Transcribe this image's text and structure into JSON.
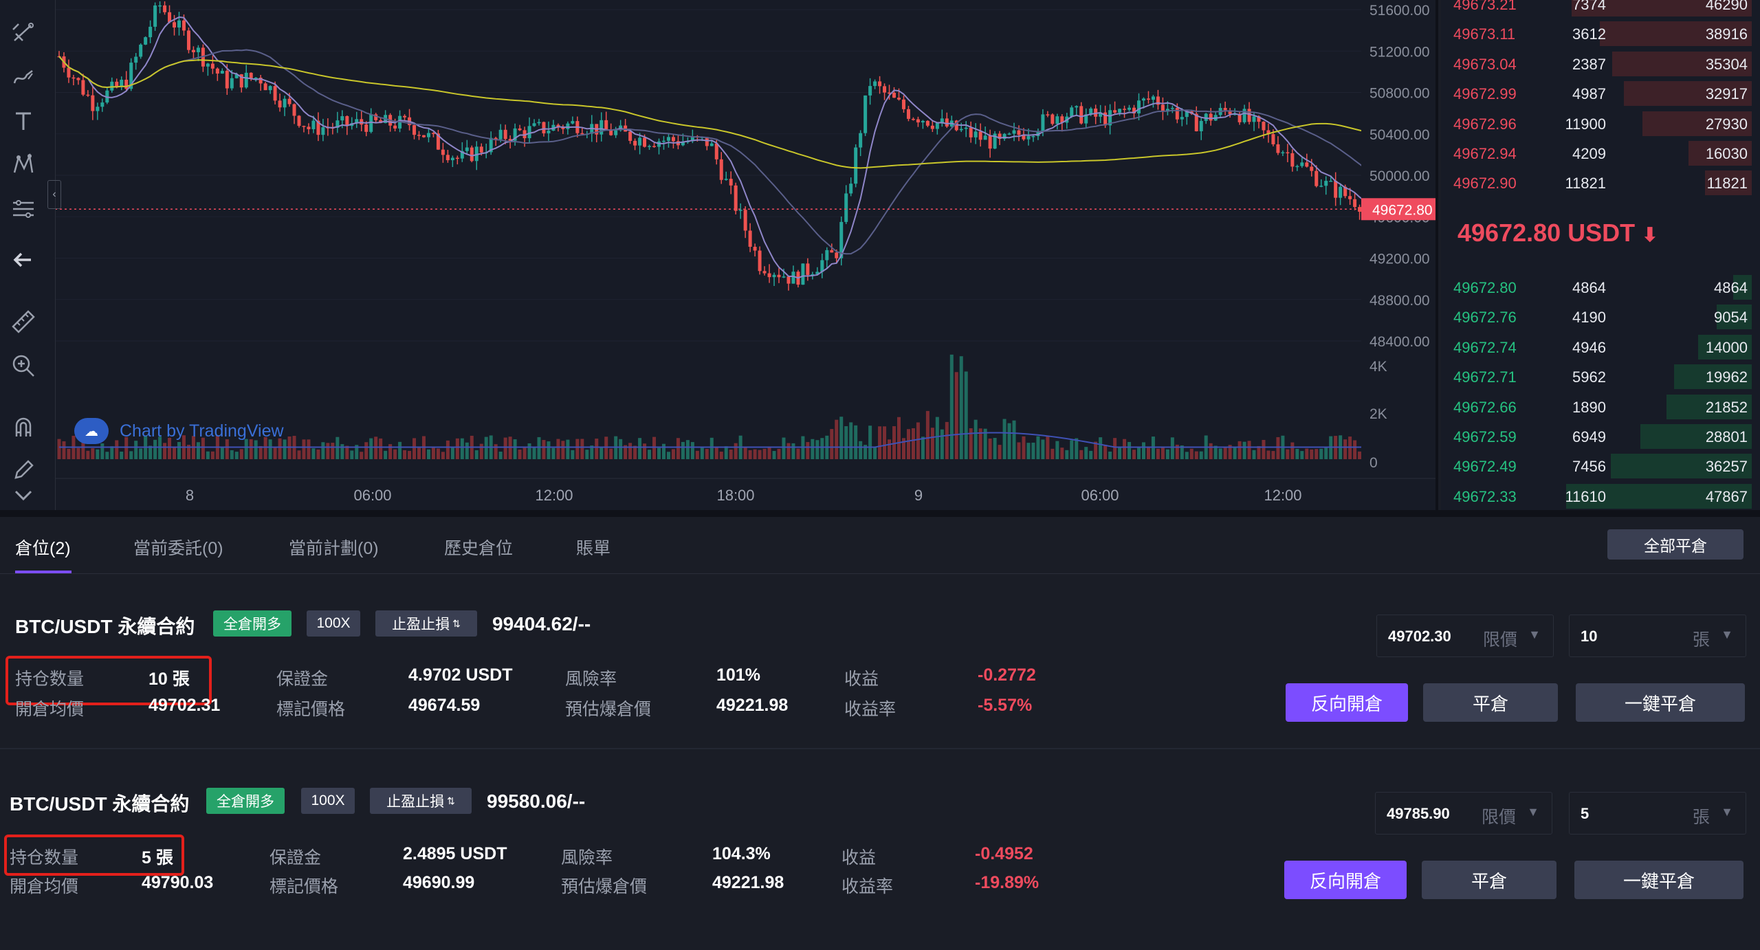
{
  "chart": {
    "price_axis": [
      "51600.00",
      "51200.00",
      "50800.00",
      "50400.00",
      "50000.00",
      "49600.00",
      "49200.00",
      "48800.00",
      "48400.00"
    ],
    "current_price_label": "49672.80",
    "volume_axis": [
      "4K",
      "2K",
      "0"
    ],
    "time_axis": [
      "8",
      "06:00",
      "12:00",
      "18:00",
      "9",
      "06:00",
      "12:00"
    ],
    "watermark": "Chart by TradingView",
    "colors": {
      "up": "#26a69a",
      "down": "#ef5350",
      "ma_yellow": "#c9c62a",
      "ma_purple": "#8f86c9",
      "ma_blue": "#3f51b5",
      "price_line": "#ef4b5e"
    }
  },
  "toolbar": {
    "icons": [
      "crosshair-lines-icon",
      "brush-icon",
      "text-icon",
      "pattern-icon",
      "fib-icon",
      "back-arrow-icon",
      "ruler-icon",
      "zoom-in-icon",
      "magnet-icon",
      "pencil-lock-icon",
      "chevron-down-icon"
    ]
  },
  "orderbook": {
    "asks": [
      {
        "price": "49673.21",
        "qty": "7374",
        "total": "46290",
        "depth": 0.97
      },
      {
        "price": "49673.11",
        "qty": "3612",
        "total": "38916",
        "depth": 0.82
      },
      {
        "price": "49673.04",
        "qty": "2387",
        "total": "35304",
        "depth": 0.75
      },
      {
        "price": "49672.99",
        "qty": "4987",
        "total": "32917",
        "depth": 0.69
      },
      {
        "price": "49672.96",
        "qty": "11900",
        "total": "27930",
        "depth": 0.59
      },
      {
        "price": "49672.94",
        "qty": "4209",
        "total": "16030",
        "depth": 0.34
      },
      {
        "price": "49672.90",
        "qty": "11821",
        "total": "11821",
        "depth": 0.25
      }
    ],
    "last_price": "49672.80 USDT",
    "last_arrow": "⬇",
    "bids": [
      {
        "price": "49672.80",
        "qty": "4864",
        "total": "4864",
        "depth": 0.1
      },
      {
        "price": "49672.76",
        "qty": "4190",
        "total": "9054",
        "depth": 0.19
      },
      {
        "price": "49672.74",
        "qty": "4946",
        "total": "14000",
        "depth": 0.29
      },
      {
        "price": "49672.71",
        "qty": "5962",
        "total": "19962",
        "depth": 0.42
      },
      {
        "price": "49672.66",
        "qty": "1890",
        "total": "21852",
        "depth": 0.46
      },
      {
        "price": "49672.59",
        "qty": "6949",
        "total": "28801",
        "depth": 0.6
      },
      {
        "price": "49672.49",
        "qty": "7456",
        "total": "36257",
        "depth": 0.76
      },
      {
        "price": "49672.33",
        "qty": "11610",
        "total": "47867",
        "depth": 1.0
      }
    ]
  },
  "tabs": [
    {
      "label": "倉位(2)",
      "active": true
    },
    {
      "label": "當前委託(0)"
    },
    {
      "label": "當前計劃(0)"
    },
    {
      "label": "歷史倉位"
    },
    {
      "label": "賬單"
    }
  ],
  "close_all_label": "全部平倉",
  "positions": [
    {
      "symbol": "BTC/USDT 永續合約",
      "mode": "全倉開多",
      "leverage": "100X",
      "tpsl": "止盈止損",
      "price_info": "99404.62/--",
      "qty_label": "持仓数量",
      "qty": "10 張",
      "margin_label": "保證金",
      "margin": "4.9702 USDT",
      "risk_label": "風險率",
      "risk": "101%",
      "pnl_label": "收益",
      "pnl": "-0.2772",
      "entry_label": "開倉均價",
      "entry": "49702.31",
      "mark_label": "標記價格",
      "mark": "49674.59",
      "liq_label": "預估爆倉價",
      "liq": "49221.98",
      "roe_label": "收益率",
      "roe": "-5.57%",
      "order_price": "49702.30",
      "order_type": "限價",
      "order_qty": "10",
      "order_unit": "張",
      "btn_reverse": "反向開倉",
      "btn_close": "平倉",
      "btn_oneclick": "一鍵平倉"
    },
    {
      "symbol": "BTC/USDT 永續合約",
      "mode": "全倉開多",
      "leverage": "100X",
      "tpsl": "止盈止損",
      "price_info": "99580.06/--",
      "qty_label": "持仓数量",
      "qty": "5 張",
      "margin_label": "保證金",
      "margin": "2.4895 USDT",
      "risk_label": "風險率",
      "risk": "104.3%",
      "pnl_label": "收益",
      "pnl": "-0.4952",
      "entry_label": "開倉均價",
      "entry": "49790.03",
      "mark_label": "標記價格",
      "mark": "49690.99",
      "liq_label": "預估爆倉價",
      "liq": "49221.98",
      "roe_label": "收益率",
      "roe": "-19.89%",
      "order_price": "49785.90",
      "order_type": "限價",
      "order_qty": "5",
      "order_unit": "張",
      "btn_reverse": "反向開倉",
      "btn_close": "平倉",
      "btn_oneclick": "一鍵平倉"
    }
  ]
}
